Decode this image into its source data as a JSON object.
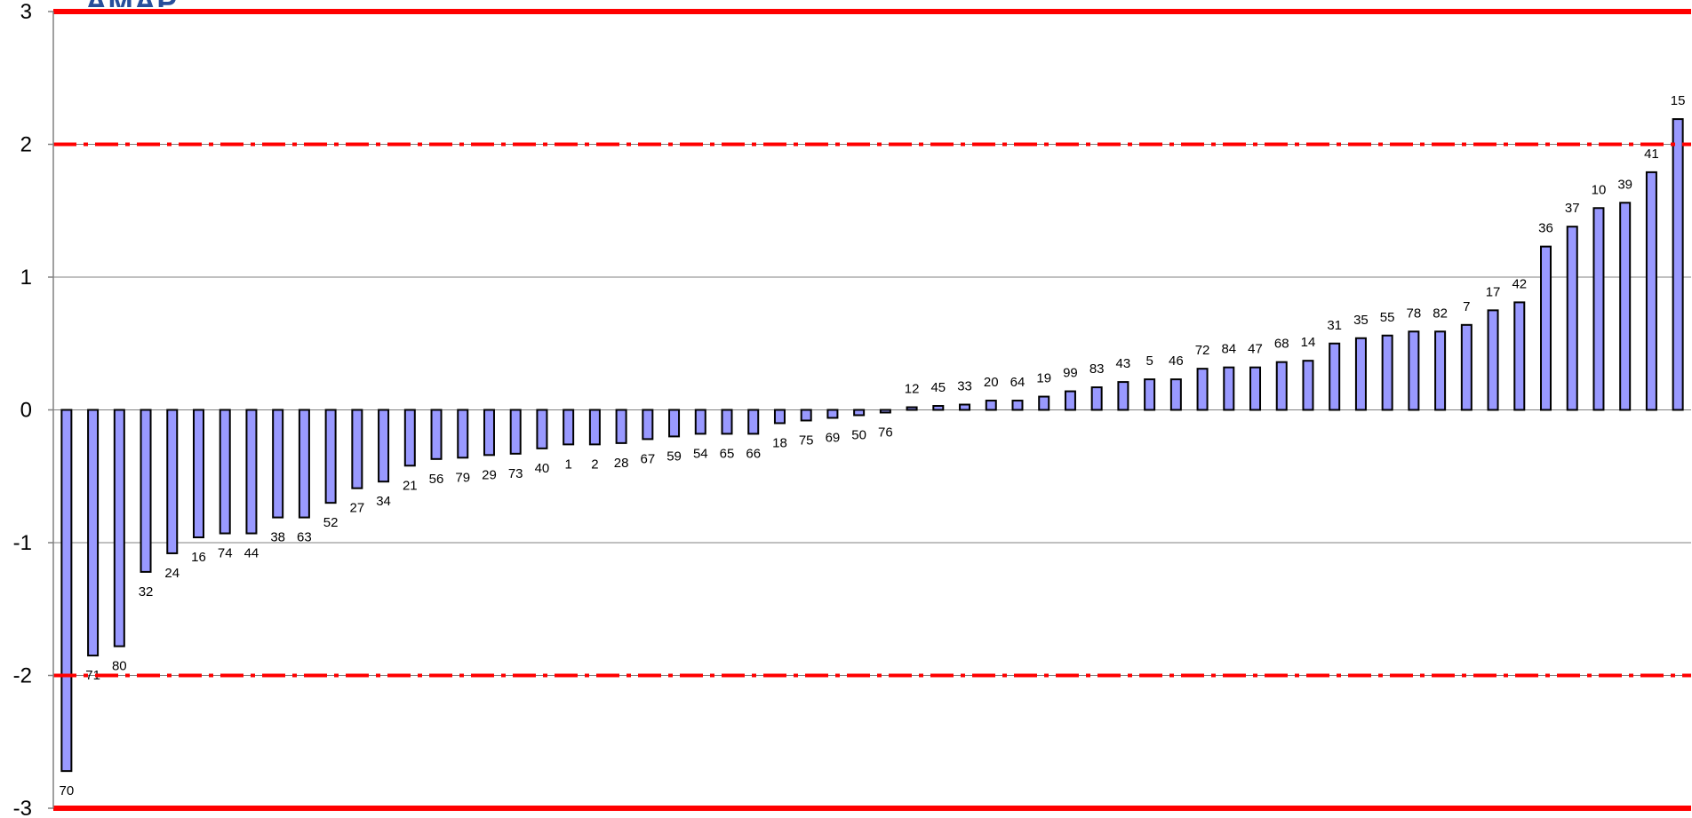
{
  "logo": {
    "text": "AMAP"
  },
  "chart_data": {
    "type": "bar",
    "ylim": [
      -3,
      3
    ],
    "yticks": [
      -3,
      -2,
      -1,
      0,
      1,
      2,
      3
    ],
    "grid": true,
    "categories": [
      "70",
      "71",
      "80",
      "32",
      "24",
      "16",
      "74",
      "44",
      "38",
      "63",
      "52",
      "27",
      "34",
      "21",
      "56",
      "79",
      "29",
      "73",
      "40",
      "1",
      "2",
      "28",
      "67",
      "59",
      "54",
      "65",
      "66",
      "18",
      "75",
      "69",
      "50",
      "76",
      "12",
      "45",
      "33",
      "20",
      "64",
      "19",
      "99",
      "83",
      "43",
      "5",
      "46",
      "72",
      "84",
      "47",
      "68",
      "14",
      "31",
      "35",
      "55",
      "78",
      "82",
      "7",
      "17",
      "42",
      "36",
      "37",
      "10",
      "39",
      "41",
      "15"
    ],
    "values": [
      -2.72,
      -1.85,
      -1.78,
      -1.22,
      -1.08,
      -0.96,
      -0.93,
      -0.93,
      -0.81,
      -0.81,
      -0.7,
      -0.59,
      -0.54,
      -0.42,
      -0.37,
      -0.36,
      -0.34,
      -0.33,
      -0.29,
      -0.26,
      -0.26,
      -0.25,
      -0.22,
      -0.2,
      -0.18,
      -0.18,
      -0.18,
      -0.1,
      -0.08,
      -0.06,
      -0.04,
      -0.02,
      0.02,
      0.03,
      0.04,
      0.07,
      0.07,
      0.1,
      0.14,
      0.17,
      0.21,
      0.23,
      0.23,
      0.31,
      0.32,
      0.32,
      0.36,
      0.37,
      0.5,
      0.54,
      0.56,
      0.59,
      0.59,
      0.64,
      0.75,
      0.81,
      1.23,
      1.38,
      1.52,
      1.56,
      1.79,
      2.19
    ],
    "reference_lines": {
      "solid": [
        3,
        -3
      ],
      "dash_dot": [
        2,
        -2
      ],
      "color": "#ff0000"
    },
    "bar_color": "#9999ff",
    "bar_border_color": "#000000"
  }
}
